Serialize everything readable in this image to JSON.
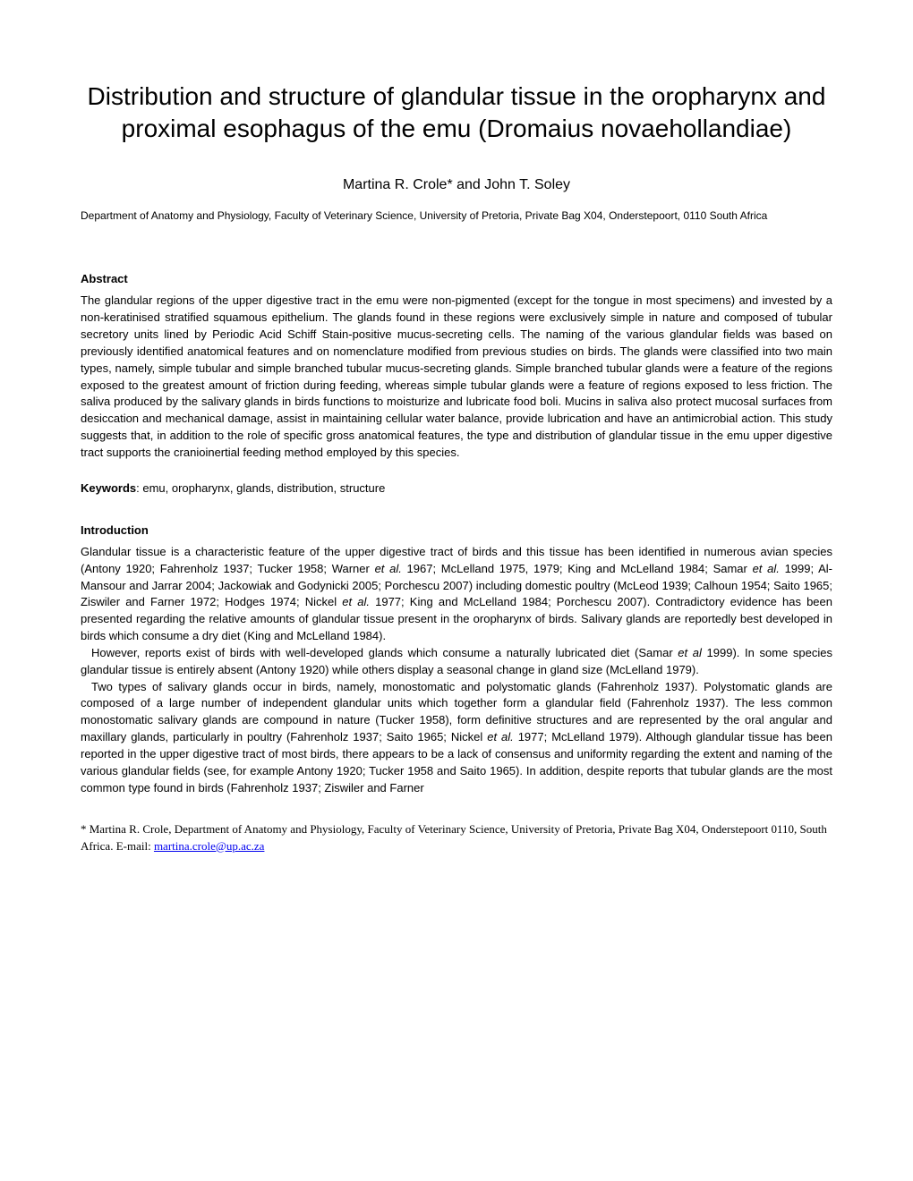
{
  "title": "Distribution and structure of glandular tissue in the oropharynx and proximal esophagus of the emu (Dromaius novaehollandiae)",
  "authors": "Martina R. Crole* and John T. Soley",
  "affiliation": "Department of Anatomy and Physiology, Faculty of Veterinary Science, University of Pretoria, Private Bag X04, Onderstepoort, 0110 South Africa",
  "abstract_heading": "Abstract",
  "abstract_text": "The glandular regions of the upper digestive tract in the emu were non-pigmented (except for the tongue in most specimens) and invested by a non-keratinised stratified squamous epithelium. The glands found in these regions were exclusively simple in nature and composed of tubular secretory units lined by Periodic Acid Schiff Stain-positive mucus-secreting cells. The naming of the various glandular fields was based on previously identified anatomical features and on nomenclature modified from previous studies on birds. The glands were classified into two main types, namely, simple tubular and simple branched tubular mucus-secreting glands. Simple branched tubular glands were a feature of the regions exposed to the greatest amount of friction during feeding, whereas simple tubular glands were a feature of regions exposed to less friction. The saliva produced by the salivary glands in birds functions to moisturize and lubricate food boli. Mucins in saliva also protect mucosal surfaces from desiccation and mechanical damage, assist in maintaining cellular water balance, provide lubrication and have an antimicrobial action. This study suggests that, in addition to the role of specific gross anatomical features, the type and distribution of glandular tissue in the emu upper digestive tract supports the cranioinertial feeding method employed by this species.",
  "keywords_label": "Keywords",
  "keywords_text": ": emu, oropharynx, glands, distribution, structure",
  "intro_heading": "Introduction",
  "intro_p1_a": "Glandular tissue is a characteristic feature of the upper digestive tract of birds and this tissue has been identified in numerous avian species (Antony 1920; Fahrenholz 1937; Tucker 1958; Warner ",
  "intro_p1_b": " 1967; McLelland 1975, 1979; King and McLelland 1984; Samar ",
  "intro_p1_c": " 1999; Al-Mansour and Jarrar 2004; Jackowiak and Godynicki 2005; Porchescu 2007) including domestic poultry (McLeod 1939; Calhoun 1954; Saito 1965; Ziswiler and Farner 1972; Hodges 1974; Nickel ",
  "intro_p1_d": " 1977; King and McLelland 1984; Porchescu 2007). Contradictory evidence has been presented regarding the relative amounts of glandular tissue present in the oropharynx of birds. Salivary glands are reportedly best developed in birds which consume a dry diet (King and McLelland 1984).",
  "intro_p2_a": "However, reports exist of birds with well-developed glands which consume a naturally lubricated diet (Samar ",
  "intro_p2_b": " 1999). In some species glandular tissue is entirely absent (Antony 1920) while others display a seasonal change in gland size (McLelland 1979).",
  "intro_p3_a": "Two types of salivary glands occur in birds, namely, monostomatic and polystomatic glands (Fahrenholz 1937). Polystomatic glands are composed of a large number of independent glandular units which together form a glandular field (Fahrenholz 1937). The less common monostomatic salivary glands are compound in nature (Tucker 1958), form definitive structures and are represented by the oral angular and maxillary glands, particularly in poultry (Fahrenholz 1937; Saito 1965; Nickel ",
  "intro_p3_b": " 1977; McLelland 1979). Although glandular tissue has been reported in the upper digestive tract of most birds, there appears to be a lack of consensus and uniformity regarding the extent and naming of the various glandular fields (see, for example Antony 1920; Tucker 1958 and Saito 1965). In addition, despite reports that tubular glands are the most common type found in birds (Fahrenholz 1937; Ziswiler and Farner",
  "et_al": "et al.",
  "et_al_no_dot": "et al",
  "footnote_a": "* Martina R. Crole, Department of Anatomy and Physiology, Faculty of Veterinary Science, University of Pretoria, Private Bag X04, Onderstepoort 0110, South Africa. E-mail: ",
  "footnote_email": "martina.crole@up.ac.za"
}
